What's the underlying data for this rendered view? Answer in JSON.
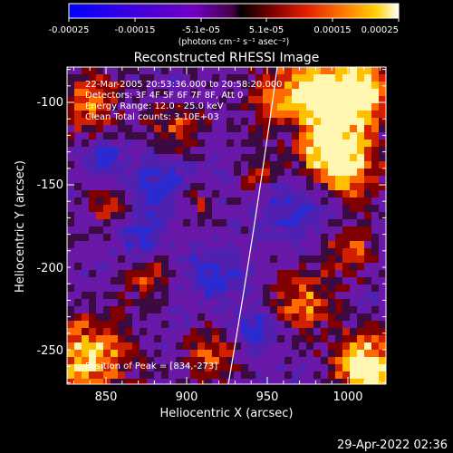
{
  "colorbar": {
    "ticks": [
      "-0.00025",
      "-0.00015",
      "-5.1e-05",
      "5.1e-05",
      "0.00015",
      "0.00025"
    ],
    "unit_label": "(photons cm⁻² s⁻¹ asec⁻²)"
  },
  "title": "Reconstructed RHESSI Image",
  "annotations": {
    "time_range": "22-Mar-2005 20:53:36.000 to 20:58:20.000",
    "detectors": "Detectors: 3F 4F 5F 6F 7F 8F, Att 0",
    "energy": "Energy Range: 12.0 - 25.0 keV",
    "clean": "Clean    Total counts: 3.10E+03",
    "peak": "Position of Peak = [834,-273]"
  },
  "axes": {
    "xlabel": "Heliocentric X (arcsec)",
    "ylabel": "Heliocentric Y (arcsec)",
    "xticks": [
      "850",
      "900",
      "950",
      "1000"
    ],
    "yticks": [
      "-100",
      "-150",
      "-200",
      "-250"
    ],
    "xlim": [
      830,
      1022
    ],
    "ylim": [
      -273,
      -82
    ]
  },
  "footer": {
    "timestamp": "29-Apr-2022 02:36"
  },
  "colors": {
    "background": "#000000",
    "limb_line": "#ffffff"
  }
}
